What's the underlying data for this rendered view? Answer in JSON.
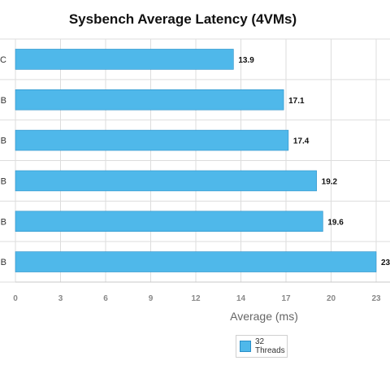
{
  "chart_data": {
    "type": "bar",
    "orientation": "horizontal",
    "title": "Sysbench Average Latency (4VMs)",
    "xlabel": "Average (ms)",
    "ylabel": "",
    "categories": [
      "C",
      "B",
      "B",
      "B",
      "B",
      "B"
    ],
    "series": [
      {
        "name": "32 Threads",
        "values": [
          13.9,
          17.1,
          17.4,
          19.2,
          19.6,
          23
        ]
      }
    ],
    "value_labels": [
      "13.9",
      "17.1",
      "17.4",
      "19.2",
      "19.6",
      "23"
    ],
    "xlim": [
      0,
      23
    ],
    "xticks": [
      "0",
      "3",
      "6",
      "9",
      "12",
      "14",
      "17",
      "20",
      "23"
    ],
    "xtick_values": [
      0,
      2.875,
      5.75,
      8.625,
      11.5,
      14.375,
      17.25,
      20.125,
      23
    ],
    "grid": true,
    "legend_position": "bottom-center",
    "colors": {
      "bar": "#4fb8ea",
      "bar_border": "#2a8fc8",
      "grid": "#dddddd"
    }
  }
}
